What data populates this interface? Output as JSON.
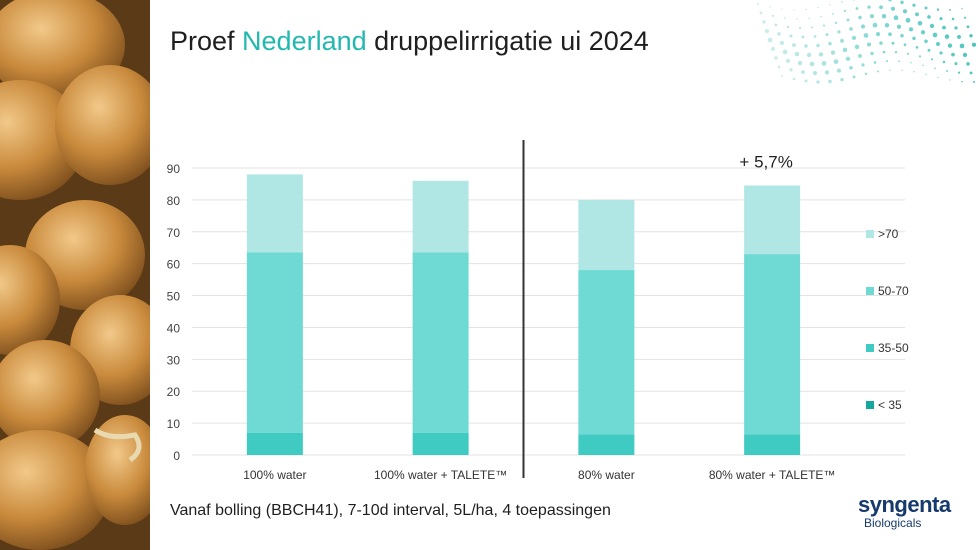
{
  "slide": {
    "title_prefix": "Proef ",
    "title_accent": "Nederland",
    "title_suffix": " druppelirrigatie ui 2024",
    "footnote": "Vanaf bolling (BBCH41), 7-10d interval, 5L/ha, 4 toepassingen",
    "logo_main": "syngenta",
    "logo_sub": "Biologicals",
    "colors": {
      "accent": "#22b8b0",
      "lt35": "#1bbfb5",
      "s35_50": "#3fcbc2",
      "s50_70": "#6fd9d4",
      "gt70": "#b0e6e3"
    }
  },
  "chart_data": {
    "type": "bar",
    "stacked": true,
    "categories": [
      "100% water",
      "100% water + TALETE™",
      "80% water",
      "80% water + TALETE™"
    ],
    "series": [
      {
        "name": "< 35",
        "values": [
          0,
          0,
          0,
          0
        ]
      },
      {
        "name": "35-50",
        "values": [
          7,
          7,
          6.5,
          6.5
        ]
      },
      {
        "name": "50-70",
        "values": [
          56.5,
          56.5,
          51.5,
          56.5
        ]
      },
      {
        "name": ">70",
        "values": [
          24.5,
          22.5,
          22,
          21.5
        ]
      }
    ],
    "ylim": [
      0,
      90
    ],
    "yticks": [
      0,
      10,
      20,
      30,
      40,
      50,
      60,
      70,
      80,
      90
    ],
    "annotation": {
      "text": "+ 5,7%",
      "category_index": 3
    },
    "divider_after_index": 1,
    "legend_placement": "right",
    "grid": true
  }
}
